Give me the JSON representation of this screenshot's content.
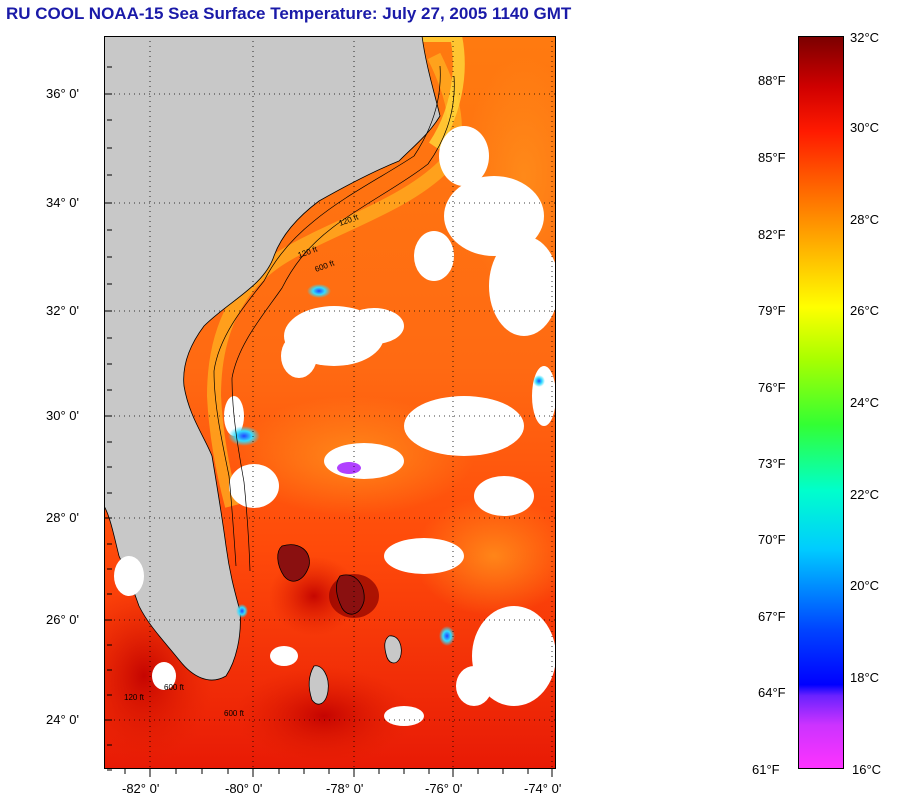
{
  "title": "RU COOL  NOAA-15  Sea Surface Temperature:  July 27, 2005 1140 GMT",
  "map": {
    "latitude_labels": [
      "36° 0'",
      "34° 0'",
      "32° 0'",
      "30° 0'",
      "28° 0'",
      "26° 0'",
      "24° 0'"
    ],
    "longitude_labels": [
      "-82° 0'",
      "-80° 0'",
      "-78° 0'",
      "-76° 0'",
      "-74° 0'"
    ],
    "contour_labels": [
      "120 ft",
      "600 ft",
      "120 ft",
      "600 ft",
      "120 ft",
      "600 ft"
    ],
    "colors": {
      "land": "#c8c8c8",
      "cloud": "#ffffff",
      "coastline": "#000000"
    }
  },
  "colorbar": {
    "fahrenheit_labels": [
      "88°F",
      "85°F",
      "82°F",
      "79°F",
      "76°F",
      "73°F",
      "70°F",
      "67°F",
      "64°F",
      "61°F"
    ],
    "celsius_labels": [
      "32°C",
      "30°C",
      "28°C",
      "26°C",
      "24°C",
      "22°C",
      "20°C",
      "18°C",
      "16°C"
    ],
    "celsius_range": [
      16,
      32
    ],
    "colors": [
      "#ff33ff",
      "#9933ff",
      "#0000ff",
      "#0099ff",
      "#00ffff",
      "#00ff66",
      "#aaff00",
      "#ffff00",
      "#ff9900",
      "#ff3300",
      "#e00000",
      "#800000"
    ]
  }
}
